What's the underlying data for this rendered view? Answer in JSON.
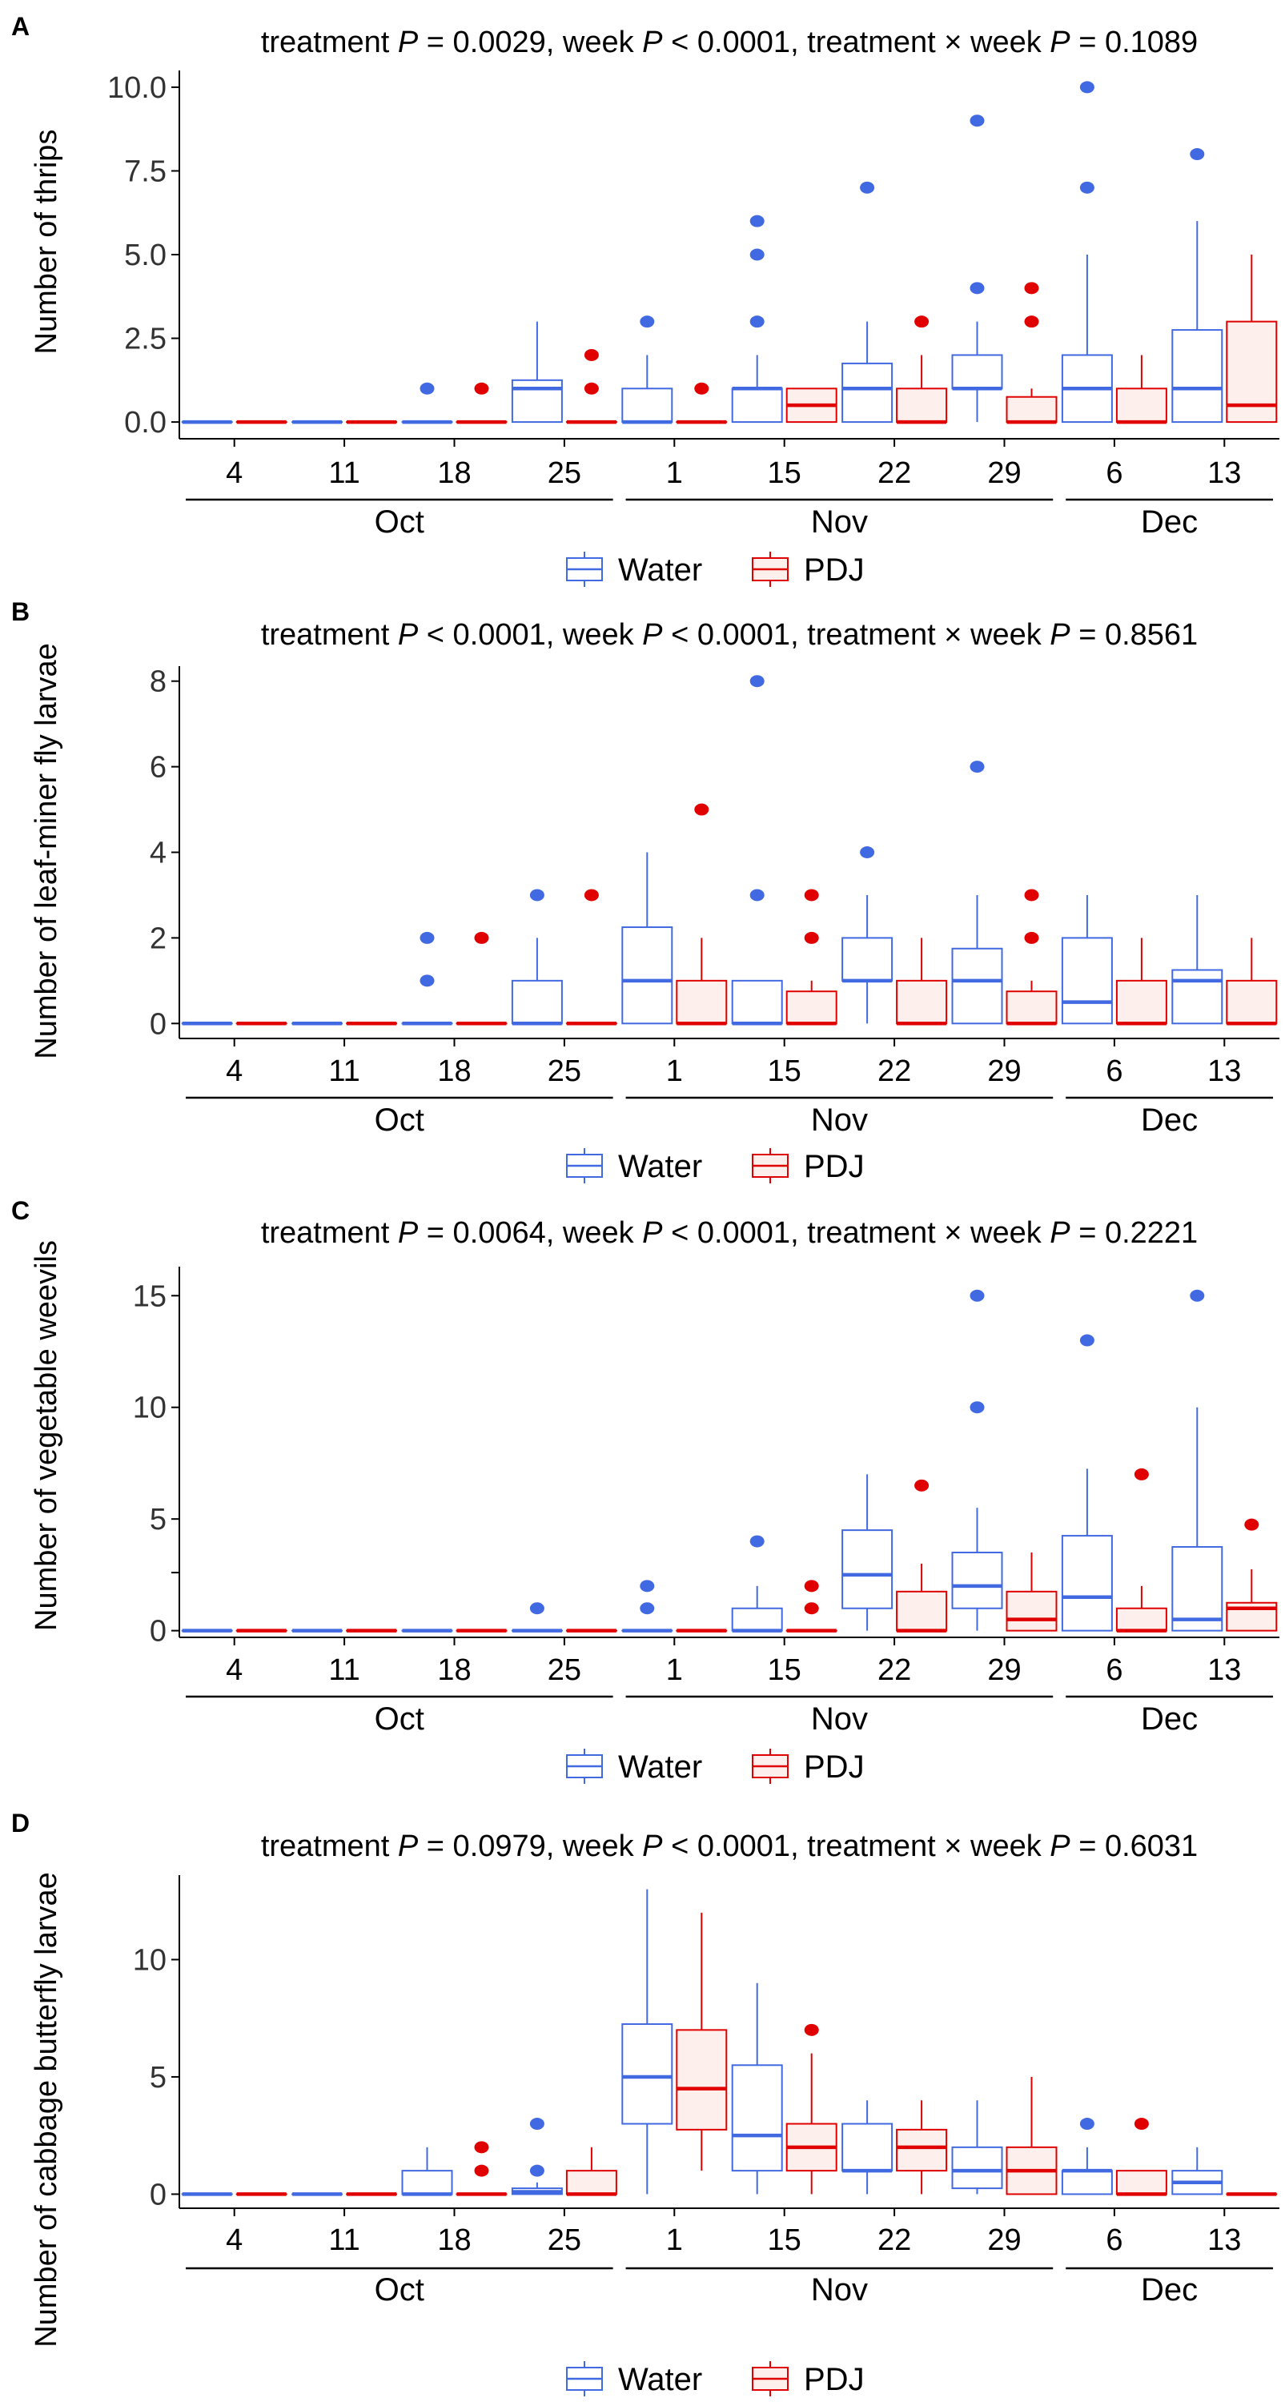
{
  "figure": {
    "treatments": [
      "Water",
      "PDJ"
    ],
    "colors": {
      "Water": "#4169e1",
      "PDJ": "#e00000",
      "PDJ_fill": "#fdf0ec",
      "axis": "#000000"
    },
    "weeks": [
      "4",
      "11",
      "18",
      "25",
      "1",
      "15",
      "22",
      "29",
      "6",
      "13"
    ],
    "months": [
      {
        "label": "Oct",
        "from": 0,
        "to": 3
      },
      {
        "label": "Nov",
        "from": 4,
        "to": 7
      },
      {
        "label": "Dec",
        "from": 8,
        "to": 9
      }
    ]
  },
  "chart_data": [
    {
      "type": "boxplot",
      "panel": "A",
      "title_parts": [
        "treatment ",
        "P",
        " = 0.0029, week ",
        "P",
        " < 0.0001, treatment × week ",
        "P",
        " = 0.1089"
      ],
      "ylabel": "Number of thrips",
      "ylim": [
        -0.5,
        10.5
      ],
      "yticks": [
        0,
        2.5,
        5,
        7.5,
        10
      ],
      "ytick_labels": [
        "0.0",
        "2.5",
        "5.0",
        "7.5",
        "10.0"
      ],
      "series": [
        {
          "name": "Water",
          "boxes": [
            {
              "q1": 0,
              "med": 0,
              "q3": 0,
              "lo": 0,
              "hi": 0,
              "out": []
            },
            {
              "q1": 0,
              "med": 0,
              "q3": 0,
              "lo": 0,
              "hi": 0,
              "out": []
            },
            {
              "q1": 0,
              "med": 0,
              "q3": 0,
              "lo": 0,
              "hi": 0,
              "out": [
                1
              ]
            },
            {
              "q1": 0,
              "med": 1,
              "q3": 1.25,
              "lo": 0,
              "hi": 3,
              "out": []
            },
            {
              "q1": 0,
              "med": 0,
              "q3": 1,
              "lo": 0,
              "hi": 2,
              "out": [
                3
              ]
            },
            {
              "q1": 0,
              "med": 1,
              "q3": 1,
              "lo": 0,
              "hi": 2,
              "out": [
                3,
                5,
                6
              ]
            },
            {
              "q1": 0,
              "med": 1,
              "q3": 1.75,
              "lo": 0,
              "hi": 3,
              "out": [
                7
              ]
            },
            {
              "q1": 1,
              "med": 1,
              "q3": 2,
              "lo": 0,
              "hi": 3,
              "out": [
                4,
                9
              ]
            },
            {
              "q1": 0,
              "med": 1,
              "q3": 2,
              "lo": 0,
              "hi": 5,
              "out": [
                7,
                10
              ]
            },
            {
              "q1": 0,
              "med": 1,
              "q3": 2.75,
              "lo": 0,
              "hi": 6,
              "out": [
                8
              ]
            }
          ]
        },
        {
          "name": "PDJ",
          "boxes": [
            {
              "q1": 0,
              "med": 0,
              "q3": 0,
              "lo": 0,
              "hi": 0,
              "out": []
            },
            {
              "q1": 0,
              "med": 0,
              "q3": 0,
              "lo": 0,
              "hi": 0,
              "out": []
            },
            {
              "q1": 0,
              "med": 0,
              "q3": 0,
              "lo": 0,
              "hi": 0,
              "out": [
                1
              ]
            },
            {
              "q1": 0,
              "med": 0,
              "q3": 0,
              "lo": 0,
              "hi": 0,
              "out": [
                1,
                2
              ]
            },
            {
              "q1": 0,
              "med": 0,
              "q3": 0,
              "lo": 0,
              "hi": 0,
              "out": [
                1
              ]
            },
            {
              "q1": 0,
              "med": 0.5,
              "q3": 1,
              "lo": 0,
              "hi": 1,
              "out": []
            },
            {
              "q1": 0,
              "med": 0,
              "q3": 1,
              "lo": 0,
              "hi": 2,
              "out": [
                3
              ]
            },
            {
              "q1": 0,
              "med": 0,
              "q3": 0.75,
              "lo": 0,
              "hi": 1,
              "out": [
                3,
                4
              ]
            },
            {
              "q1": 0,
              "med": 0,
              "q3": 1,
              "lo": 0,
              "hi": 2,
              "out": []
            },
            {
              "q1": 0,
              "med": 0.5,
              "q3": 3,
              "lo": 0,
              "hi": 5,
              "out": []
            }
          ]
        }
      ]
    },
    {
      "type": "boxplot",
      "panel": "B",
      "title_parts": [
        "treatment ",
        "P",
        " < 0.0001, week ",
        "P",
        " < 0.0001, treatment × week ",
        "P",
        " = 0.8561"
      ],
      "ylabel": "Number of leaf-miner fly larvae",
      "ylim": [
        -0.35,
        8.35
      ],
      "yticks": [
        0,
        2,
        4,
        6,
        8
      ],
      "ytick_labels": [
        "0",
        "2",
        "4",
        "6",
        "8"
      ],
      "series": [
        {
          "name": "Water",
          "boxes": [
            {
              "q1": 0,
              "med": 0,
              "q3": 0,
              "lo": 0,
              "hi": 0,
              "out": []
            },
            {
              "q1": 0,
              "med": 0,
              "q3": 0,
              "lo": 0,
              "hi": 0,
              "out": []
            },
            {
              "q1": 0,
              "med": 0,
              "q3": 0,
              "lo": 0,
              "hi": 0,
              "out": [
                1,
                2
              ]
            },
            {
              "q1": 0,
              "med": 0,
              "q3": 1,
              "lo": 0,
              "hi": 2,
              "out": [
                3
              ]
            },
            {
              "q1": 0,
              "med": 1,
              "q3": 2.25,
              "lo": 0,
              "hi": 4,
              "out": []
            },
            {
              "q1": 0,
              "med": 0,
              "q3": 1,
              "lo": 0,
              "hi": 1,
              "out": [
                3,
                8
              ]
            },
            {
              "q1": 1,
              "med": 1,
              "q3": 2,
              "lo": 0,
              "hi": 3,
              "out": [
                4
              ]
            },
            {
              "q1": 0,
              "med": 1,
              "q3": 1.75,
              "lo": 0,
              "hi": 3,
              "out": [
                6
              ]
            },
            {
              "q1": 0,
              "med": 0.5,
              "q3": 2,
              "lo": 0,
              "hi": 3,
              "out": []
            },
            {
              "q1": 0,
              "med": 1,
              "q3": 1.25,
              "lo": 0,
              "hi": 3,
              "out": []
            }
          ]
        },
        {
          "name": "PDJ",
          "boxes": [
            {
              "q1": 0,
              "med": 0,
              "q3": 0,
              "lo": 0,
              "hi": 0,
              "out": []
            },
            {
              "q1": 0,
              "med": 0,
              "q3": 0,
              "lo": 0,
              "hi": 0,
              "out": []
            },
            {
              "q1": 0,
              "med": 0,
              "q3": 0,
              "lo": 0,
              "hi": 0,
              "out": [
                2
              ]
            },
            {
              "q1": 0,
              "med": 0,
              "q3": 0,
              "lo": 0,
              "hi": 0,
              "out": [
                3
              ]
            },
            {
              "q1": 0,
              "med": 0,
              "q3": 1,
              "lo": 0,
              "hi": 2,
              "out": [
                5
              ]
            },
            {
              "q1": 0,
              "med": 0,
              "q3": 0.75,
              "lo": 0,
              "hi": 1,
              "out": [
                2,
                3
              ]
            },
            {
              "q1": 0,
              "med": 0,
              "q3": 1,
              "lo": 0,
              "hi": 2,
              "out": []
            },
            {
              "q1": 0,
              "med": 0,
              "q3": 0.75,
              "lo": 0,
              "hi": 1,
              "out": [
                2,
                3
              ]
            },
            {
              "q1": 0,
              "med": 0,
              "q3": 1,
              "lo": 0,
              "hi": 2,
              "out": []
            },
            {
              "q1": 0,
              "med": 0,
              "q3": 1,
              "lo": 0,
              "hi": 2,
              "out": []
            }
          ]
        }
      ]
    },
    {
      "type": "boxplot",
      "panel": "C",
      "title_parts": [
        "treatment ",
        "P",
        " = 0.0064, week ",
        "P",
        " < 0.0001, treatment × week ",
        "P",
        " = 0.2221"
      ],
      "ylabel": "Number of vegetable weevils",
      "yscale": "broken",
      "ylim": [
        -0.3,
        16.3
      ],
      "yticks": [
        0,
        5,
        10,
        15
      ],
      "ytick_labels": [
        "0",
        "5",
        "10",
        "15"
      ],
      "series": [
        {
          "name": "Water",
          "boxes": [
            {
              "q1": 0,
              "med": 0,
              "q3": 0,
              "lo": 0,
              "hi": 0,
              "out": []
            },
            {
              "q1": 0,
              "med": 0,
              "q3": 0,
              "lo": 0,
              "hi": 0,
              "out": []
            },
            {
              "q1": 0,
              "med": 0,
              "q3": 0,
              "lo": 0,
              "hi": 0,
              "out": []
            },
            {
              "q1": 0,
              "med": 0,
              "q3": 0,
              "lo": 0,
              "hi": 0,
              "out": [
                1
              ]
            },
            {
              "q1": 0,
              "med": 0,
              "q3": 0,
              "lo": 0,
              "hi": 0,
              "out": [
                1,
                2
              ]
            },
            {
              "q1": 0,
              "med": 0,
              "q3": 1,
              "lo": 0,
              "hi": 2,
              "out": [
                4
              ]
            },
            {
              "q1": 1,
              "med": 2.5,
              "q3": 4.5,
              "lo": 0,
              "hi": 7,
              "out": []
            },
            {
              "q1": 1,
              "med": 2,
              "q3": 3.5,
              "lo": 0,
              "hi": 5.5,
              "out": [
                10,
                15
              ]
            },
            {
              "q1": 0,
              "med": 1.5,
              "q3": 4.25,
              "lo": 0,
              "hi": 7.25,
              "out": [
                13
              ]
            },
            {
              "q1": 0,
              "med": 0.5,
              "q3": 3.75,
              "lo": 0,
              "hi": 10,
              "out": [
                15
              ]
            }
          ]
        },
        {
          "name": "PDJ",
          "boxes": [
            {
              "q1": 0,
              "med": 0,
              "q3": 0,
              "lo": 0,
              "hi": 0,
              "out": []
            },
            {
              "q1": 0,
              "med": 0,
              "q3": 0,
              "lo": 0,
              "hi": 0,
              "out": []
            },
            {
              "q1": 0,
              "med": 0,
              "q3": 0,
              "lo": 0,
              "hi": 0,
              "out": []
            },
            {
              "q1": 0,
              "med": 0,
              "q3": 0,
              "lo": 0,
              "hi": 0,
              "out": []
            },
            {
              "q1": 0,
              "med": 0,
              "q3": 0,
              "lo": 0,
              "hi": 0,
              "out": []
            },
            {
              "q1": 0,
              "med": 0,
              "q3": 0,
              "lo": 0,
              "hi": 0,
              "out": [
                1,
                2
              ]
            },
            {
              "q1": 0,
              "med": 0,
              "q3": 1.75,
              "lo": 0,
              "hi": 3,
              "out": [
                6.5
              ]
            },
            {
              "q1": 0,
              "med": 0.5,
              "q3": 1.75,
              "lo": 0,
              "hi": 3.5,
              "out": []
            },
            {
              "q1": 0,
              "med": 0,
              "q3": 1,
              "lo": 0,
              "hi": 2,
              "out": [
                7
              ]
            },
            {
              "q1": 0,
              "med": 1,
              "q3": 1.25,
              "lo": 0,
              "hi": 2.75,
              "out": [
                4.75
              ]
            }
          ]
        }
      ]
    },
    {
      "type": "boxplot",
      "panel": "D",
      "title_parts": [
        "treatment ",
        "P",
        " = 0.0979, week ",
        "P",
        " < 0.0001, treatment × week ",
        "P",
        " = 0.6031"
      ],
      "ylabel": "Number of cabbage butterfly larvae",
      "ylim": [
        -0.6,
        13.6
      ],
      "yticks": [
        0,
        5,
        10
      ],
      "ytick_labels": [
        "0",
        "5",
        "10"
      ],
      "series": [
        {
          "name": "Water",
          "boxes": [
            {
              "q1": 0,
              "med": 0,
              "q3": 0,
              "lo": 0,
              "hi": 0,
              "out": []
            },
            {
              "q1": 0,
              "med": 0,
              "q3": 0,
              "lo": 0,
              "hi": 0,
              "out": []
            },
            {
              "q1": 0,
              "med": 0,
              "q3": 1,
              "lo": 0,
              "hi": 2,
              "out": []
            },
            {
              "q1": 0,
              "med": 0.1,
              "q3": 0.25,
              "lo": 0,
              "hi": 0.5,
              "out": [
                1,
                3
              ]
            },
            {
              "q1": 3,
              "med": 5,
              "q3": 7.25,
              "lo": 0,
              "hi": 13,
              "out": []
            },
            {
              "q1": 1,
              "med": 2.5,
              "q3": 5.5,
              "lo": 0,
              "hi": 9,
              "out": []
            },
            {
              "q1": 1,
              "med": 1,
              "q3": 3,
              "lo": 0,
              "hi": 4,
              "out": []
            },
            {
              "q1": 0.25,
              "med": 1,
              "q3": 2,
              "lo": 0,
              "hi": 4,
              "out": []
            },
            {
              "q1": 0,
              "med": 1,
              "q3": 1,
              "lo": 0,
              "hi": 2,
              "out": [
                3
              ]
            },
            {
              "q1": 0,
              "med": 0.5,
              "q3": 1,
              "lo": 0,
              "hi": 2,
              "out": []
            }
          ]
        },
        {
          "name": "PDJ",
          "boxes": [
            {
              "q1": 0,
              "med": 0,
              "q3": 0,
              "lo": 0,
              "hi": 0,
              "out": []
            },
            {
              "q1": 0,
              "med": 0,
              "q3": 0,
              "lo": 0,
              "hi": 0,
              "out": []
            },
            {
              "q1": 0,
              "med": 0,
              "q3": 0,
              "lo": 0,
              "hi": 0,
              "out": [
                1,
                2
              ]
            },
            {
              "q1": 0,
              "med": 0,
              "q3": 1,
              "lo": 0,
              "hi": 2,
              "out": []
            },
            {
              "q1": 2.75,
              "med": 4.5,
              "q3": 7,
              "lo": 1,
              "hi": 12,
              "out": []
            },
            {
              "q1": 1,
              "med": 2,
              "q3": 3,
              "lo": 0,
              "hi": 6,
              "out": [
                7
              ]
            },
            {
              "q1": 1,
              "med": 2,
              "q3": 2.75,
              "lo": 0,
              "hi": 4,
              "out": []
            },
            {
              "q1": 0,
              "med": 1,
              "q3": 2,
              "lo": 0,
              "hi": 5,
              "out": []
            },
            {
              "q1": 0,
              "med": 0,
              "q3": 1,
              "lo": 0,
              "hi": 1,
              "out": [
                3
              ]
            },
            {
              "q1": 0,
              "med": 0,
              "q3": 0,
              "lo": 0,
              "hi": 0,
              "out": []
            }
          ]
        }
      ]
    }
  ]
}
